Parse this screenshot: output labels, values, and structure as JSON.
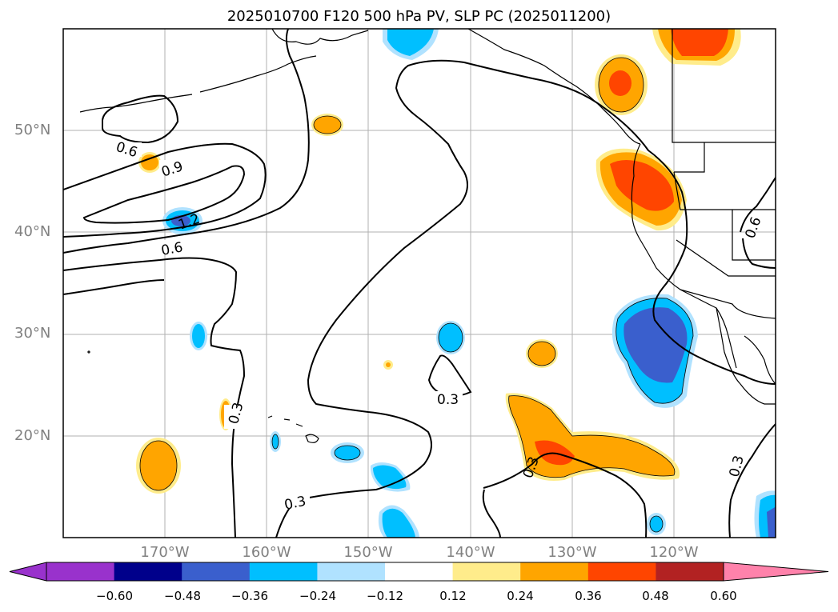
{
  "title": "2025010700 F120 500 hPa PV, SLP PC (2025011200)",
  "lat_labels": [
    "50°N",
    "40°N",
    "30°N",
    "20°N"
  ],
  "lon_labels": [
    "170°W",
    "160°W",
    "150°W",
    "140°W",
    "130°W",
    "120°W"
  ],
  "contour_labels": [
    "0.6",
    "0.9",
    "1.2",
    "0.6",
    "0.3",
    "0.3",
    "0.3",
    "0.3",
    "0.3",
    "0.6"
  ],
  "colorbar": {
    "ticks": [
      "−0.60",
      "−0.48",
      "−0.36",
      "−0.24",
      "−0.12",
      "0.12",
      "0.24",
      "0.36",
      "0.48",
      "0.60"
    ],
    "colors": [
      "#9932cc",
      "#00008b",
      "#3a5fcd",
      "#00bfff",
      "#b0e2ff",
      "#ffffff",
      "#ffec8b",
      "#ffa500",
      "#ff4500",
      "#b22222",
      "#ff82ab"
    ]
  }
}
